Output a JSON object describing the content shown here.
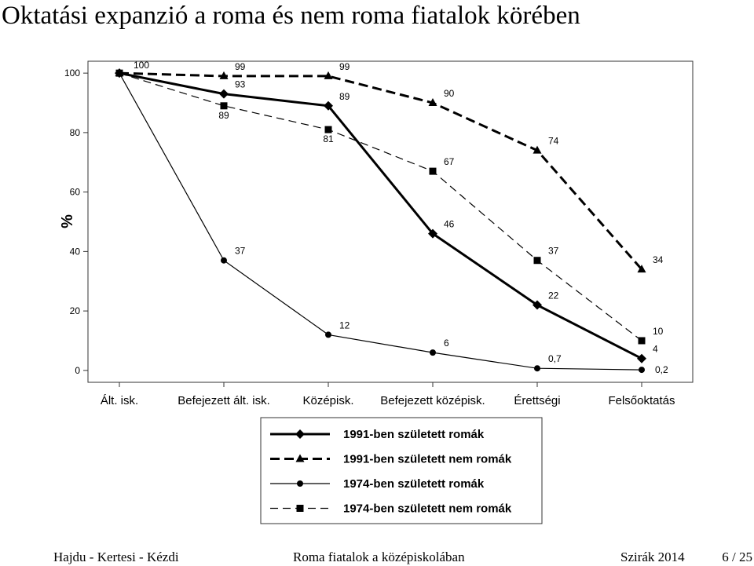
{
  "title": "Oktatási expanzió a roma és nem roma fiatalok körében",
  "chart_data": {
    "type": "line",
    "ylabel": "%",
    "categories": [
      "Ált. isk.",
      "Befejezett ált. isk.",
      "Középisk.",
      "Befejezett középisk.",
      "Érettségi",
      "Felsőoktatás"
    ],
    "ylim": [
      -4,
      104
    ],
    "yticks": [
      0,
      20,
      40,
      60,
      80,
      100
    ],
    "series": [
      {
        "name": "1991-ben született romák",
        "color": "#000000",
        "line_style": "solid",
        "line_width": "thick",
        "marker": "diamond",
        "values": [
          100,
          93,
          89,
          46,
          22,
          4
        ],
        "value_labels": [
          "100",
          "93",
          "89",
          "46",
          "22",
          "4"
        ]
      },
      {
        "name": "1991-ben született nem romák",
        "color": "#000000",
        "line_style": "dashed",
        "line_width": "thick",
        "marker": "triangle",
        "values": [
          100,
          99,
          99,
          90,
          74,
          34
        ],
        "value_labels": [
          null,
          "99",
          "99",
          "90",
          "74",
          "34"
        ]
      },
      {
        "name": "1974-ben született romák",
        "color": "#000000",
        "line_style": "solid",
        "line_width": "thin",
        "marker": "circle",
        "values": [
          100,
          37,
          12,
          6,
          0.7,
          0.2
        ],
        "value_labels": [
          null,
          "37",
          "12",
          "6",
          "0,7",
          "0,2"
        ]
      },
      {
        "name": "1974-ben született nem romák",
        "color": "#000000",
        "line_style": "dashed",
        "line_width": "thin",
        "marker": "square",
        "values": [
          100,
          89,
          81,
          67,
          37,
          10
        ],
        "value_labels": [
          null,
          "89",
          "81",
          "67",
          "37",
          "10"
        ]
      }
    ]
  },
  "footer": {
    "authors": "Hajdu - Kertesi - Kézdi",
    "talk": "Roma fiatalok a középiskolában",
    "event": "Szirák 2014",
    "page": "6 / 25"
  }
}
